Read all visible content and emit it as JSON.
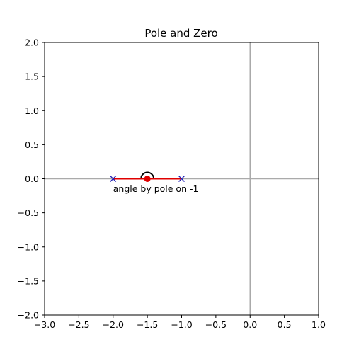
{
  "chart_data": {
    "type": "scatter",
    "title": "Pole and Zero",
    "xlabel": "",
    "ylabel": "",
    "xlim": [
      -3.0,
      1.0
    ],
    "ylim": [
      -2.0,
      2.0
    ],
    "xticks": [
      "−3.0",
      "−2.5",
      "−2.0",
      "−1.5",
      "−1.0",
      "−0.5",
      "0.0",
      "0.5",
      "1.0"
    ],
    "yticks": [
      "2.0",
      "1.5",
      "1.0",
      "0.5",
      "0.0",
      "−0.5",
      "−1.0",
      "−1.5",
      "−2.0"
    ],
    "xtick_values": [
      -3.0,
      -2.5,
      -2.0,
      -1.5,
      -1.0,
      -0.5,
      0.0,
      0.5,
      1.0
    ],
    "ytick_values": [
      2.0,
      1.5,
      1.0,
      0.5,
      0.0,
      -0.5,
      -1.0,
      -1.5,
      -2.0
    ],
    "grid": false,
    "axis_lines": [
      {
        "orientation": "horizontal",
        "value": 0.0,
        "color": "#aaaaaa"
      },
      {
        "orientation": "vertical",
        "value": 0.0,
        "color": "#aaaaaa"
      }
    ],
    "poles": [
      {
        "x": -2.0,
        "y": 0.0,
        "marker": "x",
        "color": "#1f1fb4"
      },
      {
        "x": -1.0,
        "y": 0.0,
        "marker": "x",
        "color": "#1f1fb4"
      }
    ],
    "segment": {
      "x": [
        -2.0,
        -1.0
      ],
      "y": [
        0.0,
        0.0
      ],
      "color": "#e00000"
    },
    "test_point": {
      "x": -1.5,
      "y": 0.0,
      "color": "#e00000"
    },
    "angle_arc": {
      "center_x": -1.5,
      "center_y": 0.0,
      "color": "#000000"
    },
    "annotation": {
      "text": "angle by pole on -1",
      "x": -2.0,
      "y": -0.15
    }
  }
}
